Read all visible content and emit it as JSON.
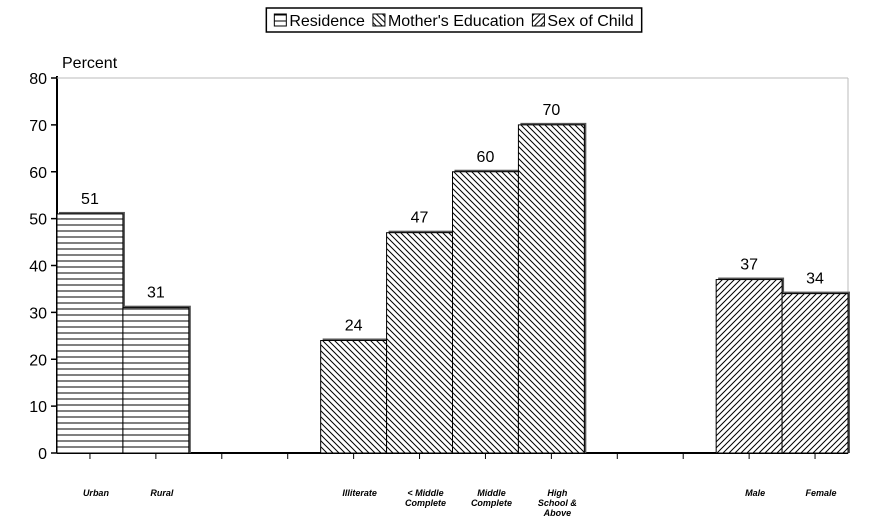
{
  "chart_data": {
    "type": "bar",
    "y_label": "Percent",
    "categories": [
      "Urban",
      "Rural",
      null,
      null,
      "Illiterate",
      "< Middle Complete",
      "Middle Complete",
      "High School & Above",
      null,
      null,
      "Male",
      "Female"
    ],
    "series": [
      {
        "name": "Residence",
        "color": "#000000",
        "pattern": "horizontal",
        "values": [
          51,
          31,
          null,
          null,
          null,
          null,
          null,
          null,
          null,
          null,
          null,
          null
        ]
      },
      {
        "name": "Mother's Education",
        "color": "#000000",
        "pattern": "backslash",
        "values": [
          null,
          null,
          null,
          null,
          24,
          47,
          60,
          70,
          null,
          null,
          null,
          null
        ]
      },
      {
        "name": "Sex of Child",
        "color": "#000000",
        "pattern": "slash",
        "values": [
          null,
          null,
          null,
          null,
          null,
          null,
          null,
          null,
          null,
          null,
          37,
          34
        ]
      }
    ],
    "ylim": [
      0,
      80
    ],
    "yticks": [
      0,
      10,
      20,
      30,
      40,
      50,
      60,
      70,
      80
    ],
    "legend": "top"
  }
}
